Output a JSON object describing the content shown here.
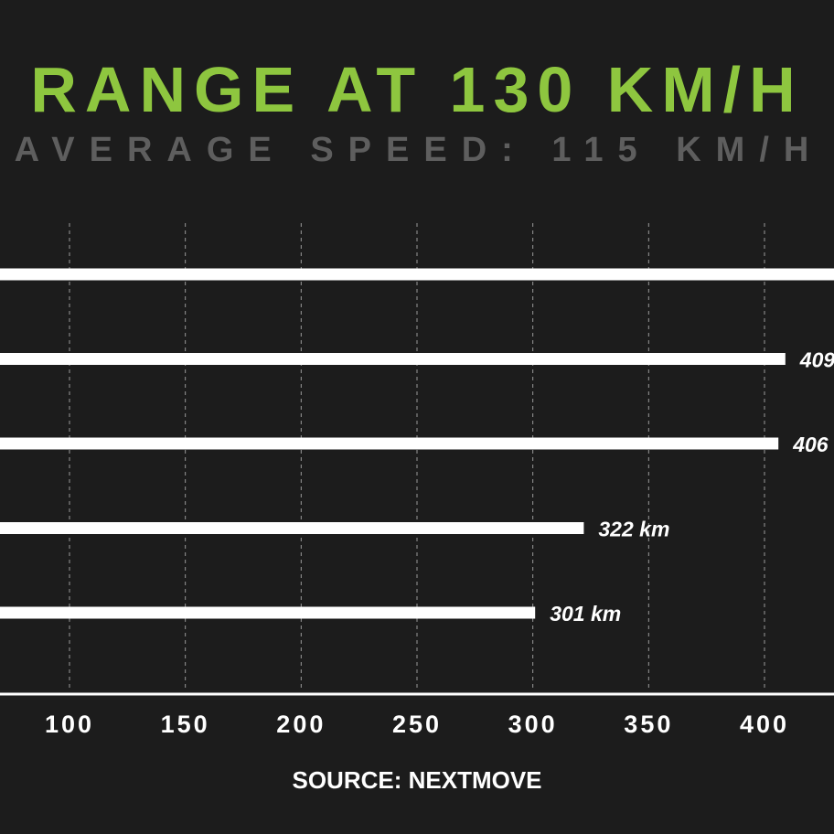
{
  "chart_data": {
    "type": "bar",
    "orientation": "horizontal",
    "title": "RANGE AT 130 KM/H",
    "subtitle": "AVERAGE SPEED: 115 KM/H",
    "source": "SOURCE: NEXTMOVE",
    "x_ticks": [
      "100",
      "150",
      "200",
      "250",
      "300",
      "350",
      "400"
    ],
    "xlim": [
      70,
      432
    ],
    "grid": true,
    "bars": [
      {
        "value": 440,
        "label": ""
      },
      {
        "value": 409,
        "label": "409"
      },
      {
        "value": 406,
        "label": "406"
      },
      {
        "value": 322,
        "label": "322 km"
      },
      {
        "value": 301,
        "label": "301 km"
      }
    ],
    "colors": {
      "background": "#1c1c1c",
      "title": "#8ec63f",
      "subtitle": "#5e5e5e",
      "bar": "#ffffff",
      "grid": "#9a9a9a",
      "text": "#ffffff"
    }
  }
}
